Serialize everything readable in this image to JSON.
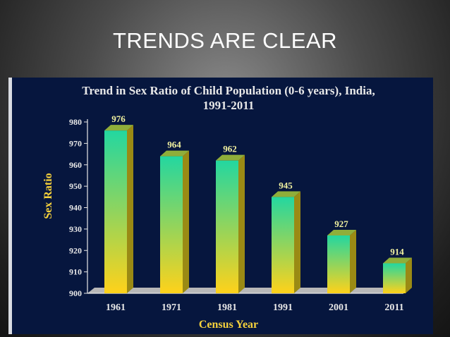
{
  "slide": {
    "title": "TRENDS ARE CLEAR"
  },
  "colors": {
    "panel_bg": "#06163e",
    "bar_top": "#23d7a0",
    "bar_bottom": "#ffd21a",
    "bar_side": "#9a8a14",
    "bar_cap": "#8fae3a",
    "floor": "#b8b8b8",
    "axis": "#e8e8e8",
    "label_text": "#f2f2a0",
    "axis_title": "#f6d23c",
    "chart_title": "#e8e8e8"
  },
  "chart_data": {
    "type": "bar",
    "title": "Trend in Sex Ratio of Child Population (0-6 years), India,",
    "subtitle": "1991-2011",
    "xlabel": "Census Year",
    "ylabel": "Sex Ratio",
    "categories": [
      "1961",
      "1971",
      "1981",
      "1991",
      "2001",
      "2011"
    ],
    "values": [
      976,
      964,
      962,
      945,
      927,
      914
    ],
    "data_labels": [
      "976",
      "964",
      "962",
      "945",
      "927",
      "914"
    ],
    "ylim": [
      900,
      980
    ],
    "yticks": [
      900,
      910,
      920,
      930,
      940,
      950,
      960,
      970,
      980
    ],
    "grid": false,
    "legend": "none"
  }
}
